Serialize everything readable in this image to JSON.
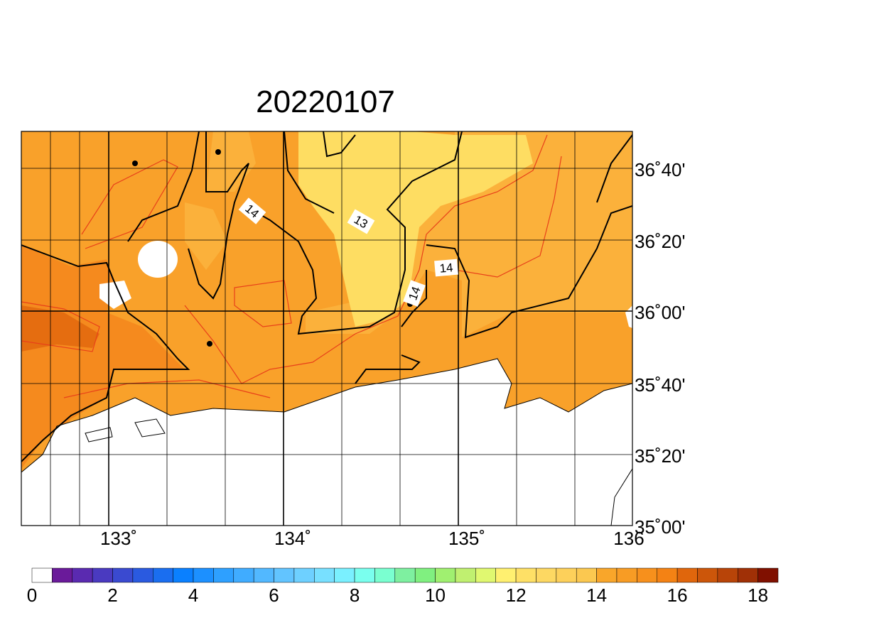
{
  "title": "20220107",
  "lat_labels": [
    "36˚40'",
    "36˚20'",
    "36˚00'",
    "35˚40'",
    "35˚20'",
    "35˚00'"
  ],
  "lon_labels": [
    "133˚",
    "134˚",
    "135˚",
    "136"
  ],
  "contour_labels": [
    "14",
    "13",
    "14",
    "14"
  ],
  "colorbar": {
    "labels": [
      "0",
      "2",
      "4",
      "6",
      "8",
      "10",
      "12",
      "14",
      "16",
      "18"
    ],
    "colors": [
      "#ffffff",
      "#6a1a9a",
      "#5a2ab0",
      "#4a3ac0",
      "#3a4ad0",
      "#2a5ae0",
      "#1a6ef0",
      "#0a80ff",
      "#1c90ff",
      "#2ea0ff",
      "#40acff",
      "#52b8ff",
      "#62c4ff",
      "#6ed0ff",
      "#78e0ff",
      "#7af0ff",
      "#7affee",
      "#7affd0",
      "#7ef0a0",
      "#80f080",
      "#a0f070",
      "#c0f070",
      "#e0f870",
      "#fff070",
      "#fee066",
      "#fdd862",
      "#fdd05a",
      "#fbc850",
      "#f9a62a",
      "#f89c24",
      "#f7901c",
      "#f48214",
      "#e0660c",
      "#cc560a",
      "#b84408",
      "#a03006",
      "#801000"
    ]
  }
}
